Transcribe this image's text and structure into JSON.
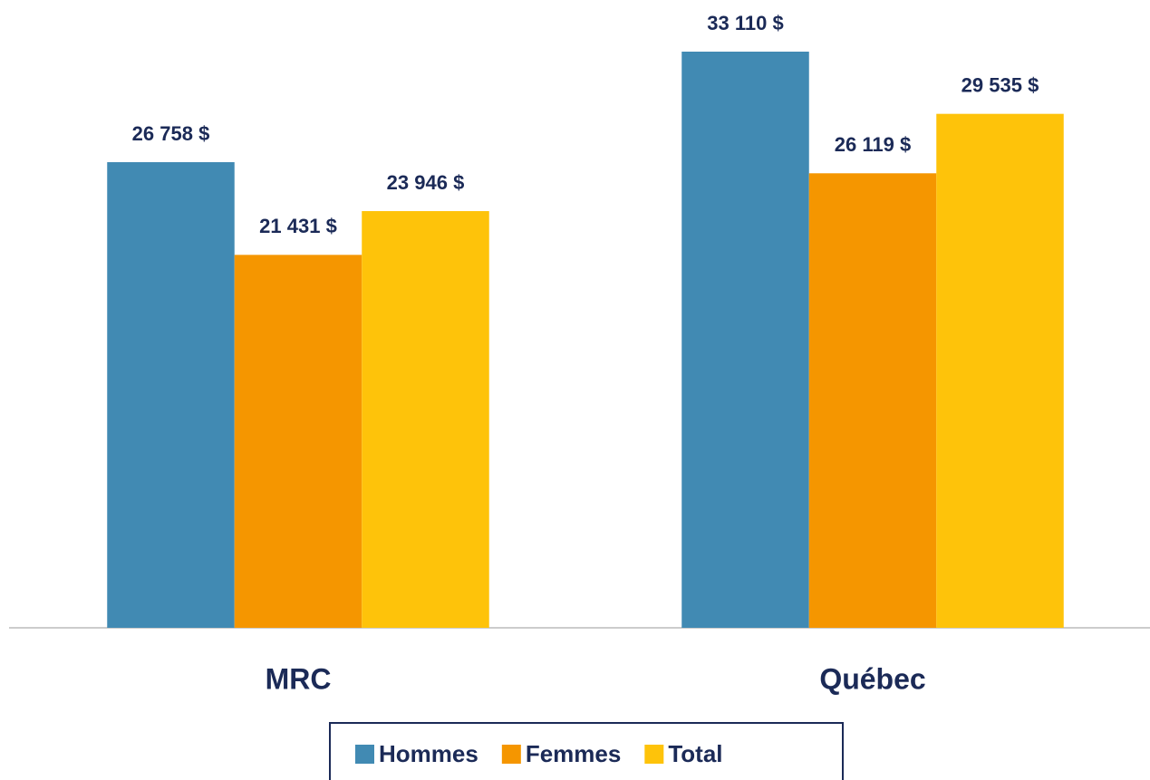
{
  "chart_data": {
    "type": "bar",
    "categories": [
      "MRC",
      "Québec"
    ],
    "series": [
      {
        "name": "Hommes",
        "color": "#418ab3",
        "values": [
          26758,
          33110
        ],
        "value_labels": [
          "26 758 $",
          "33 110 $"
        ]
      },
      {
        "name": "Femmes",
        "color": "#f59600",
        "values": [
          21431,
          26119
        ],
        "value_labels": [
          "21 431 $",
          "26 119 $"
        ]
      },
      {
        "name": "Total",
        "color": "#fec30a",
        "values": [
          23946,
          29535
        ],
        "value_labels": [
          "23 946 $",
          "29 535 $"
        ]
      }
    ],
    "legend": "bottom"
  }
}
